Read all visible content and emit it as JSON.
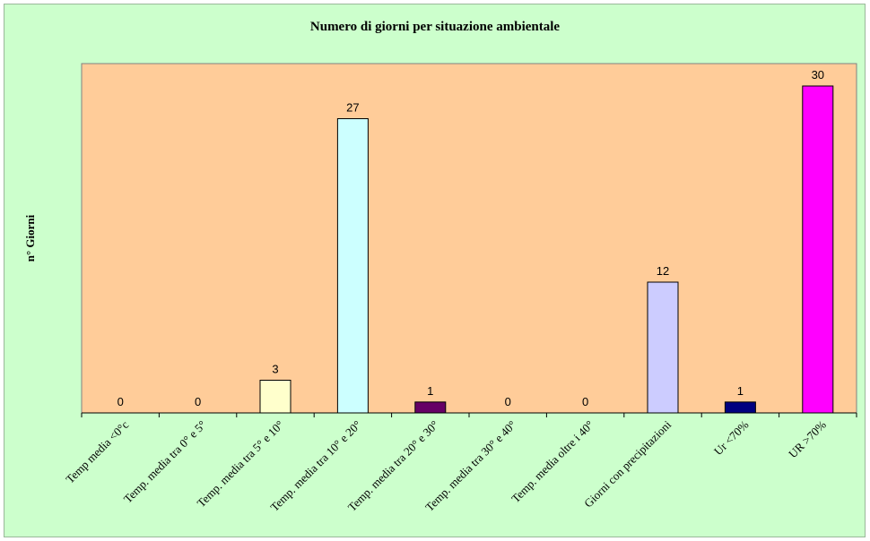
{
  "chart_data": {
    "type": "bar",
    "title": "Numero di giorni per situazione ambientale",
    "xlabel": "",
    "ylabel": "n° Giorni",
    "categories": [
      "Temp media <0°c",
      "Temp. media tra 0° e 5°",
      "Temp. media tra 5° e 10°",
      "Temp. media tra 10° e 20°",
      "Temp. media tra 20° e 30°",
      "Temp. media tra 30° e 40°",
      "Temp. media oltre i 40°",
      "Giorni con precipitazioni",
      "Ur <70%",
      "UR >70%"
    ],
    "values": [
      0,
      0,
      3,
      27,
      1,
      0,
      0,
      12,
      1,
      30
    ],
    "bar_colors": [
      "#ffffcc",
      "#ffffcc",
      "#ffffcc",
      "#ccffff",
      "#660066",
      "#ff8080",
      "#0066cc",
      "#ccccff",
      "#000080",
      "#ff00ff"
    ],
    "ylim": [
      0,
      30
    ],
    "grid": false,
    "legend": "none",
    "plot_background": "#ffcc99",
    "chart_background": "#ccffcc"
  }
}
